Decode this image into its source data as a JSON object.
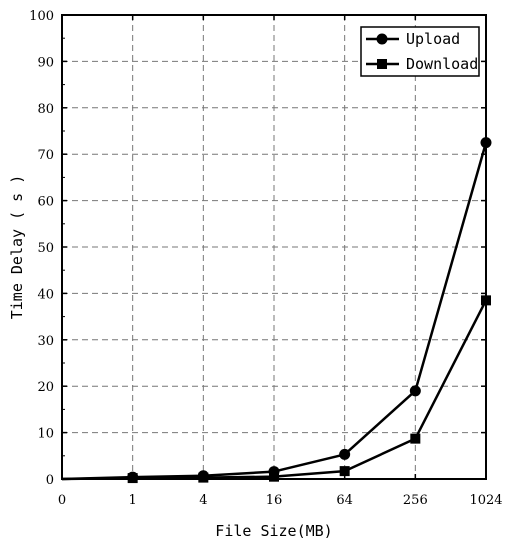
{
  "chart_data": {
    "type": "line",
    "title": "",
    "xlabel": "File Size(MB)",
    "ylabel": "Time Delay ( s )",
    "x_tick_labels": [
      "0",
      "1",
      "4",
      "16",
      "64",
      "256",
      "1024"
    ],
    "x": [
      0,
      1,
      4,
      16,
      64,
      256,
      1024
    ],
    "ylim": [
      0,
      100
    ],
    "y_tick_labels": [
      "0",
      "10",
      "20",
      "30",
      "40",
      "50",
      "60",
      "70",
      "80",
      "90",
      "100"
    ],
    "grid": true,
    "legend_placement": "top-right",
    "series": [
      {
        "name": "Upload",
        "marker": "circle",
        "values": [
          0,
          0.4,
          0.7,
          1.6,
          5.3,
          19.0,
          72.5
        ]
      },
      {
        "name": "Download",
        "marker": "square",
        "values": [
          0,
          0.2,
          0.3,
          0.5,
          1.7,
          8.7,
          38.5
        ]
      }
    ]
  }
}
